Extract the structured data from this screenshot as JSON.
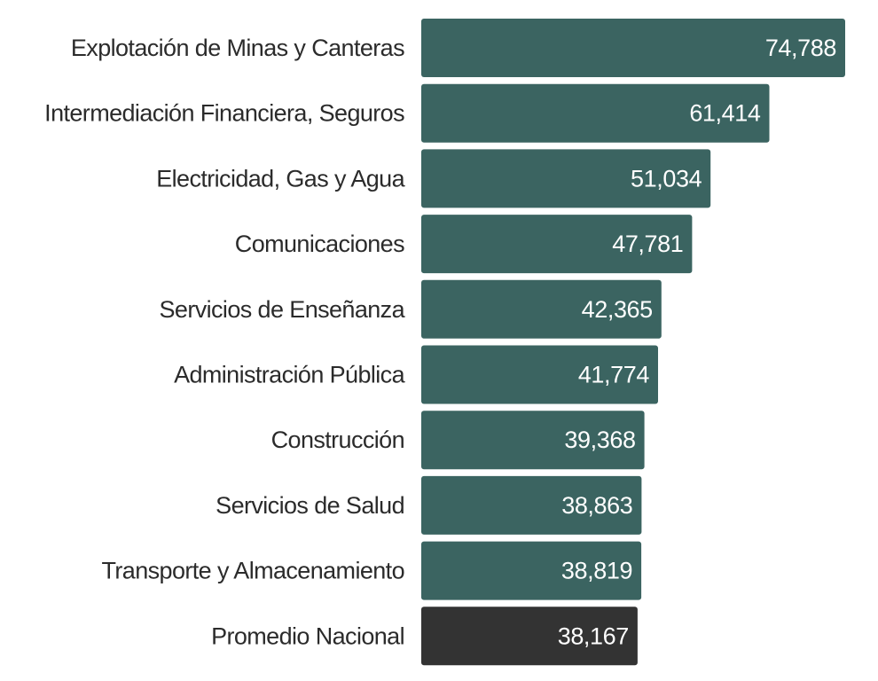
{
  "chart_data": {
    "type": "bar",
    "orientation": "horizontal",
    "title": "",
    "xlabel": "",
    "ylabel": "",
    "grid": false,
    "legend": "none",
    "xlim": [
      0,
      74788
    ],
    "categories": [
      "Explotación de Minas y Canteras",
      "Intermediación Financiera, Seguros",
      "Electricidad, Gas y Agua",
      "Comunicaciones",
      "Servicios de Enseñanza",
      "Administración Pública",
      "Construcción",
      "Servicios de Salud",
      "Transporte y Almacenamiento",
      "Promedio Nacional"
    ],
    "values": [
      74788,
      61414,
      51034,
      47781,
      42365,
      41774,
      39368,
      38863,
      38819,
      38167
    ],
    "value_labels": [
      "74,788",
      "61,414",
      "51,034",
      "47,781",
      "42,365",
      "41,774",
      "39,368",
      "38,863",
      "38,819",
      "38,167"
    ],
    "colors": [
      "#3b6461",
      "#3b6461",
      "#3b6461",
      "#3b6461",
      "#3b6461",
      "#3b6461",
      "#3b6461",
      "#3b6461",
      "#3b6461",
      "#333333"
    ]
  }
}
